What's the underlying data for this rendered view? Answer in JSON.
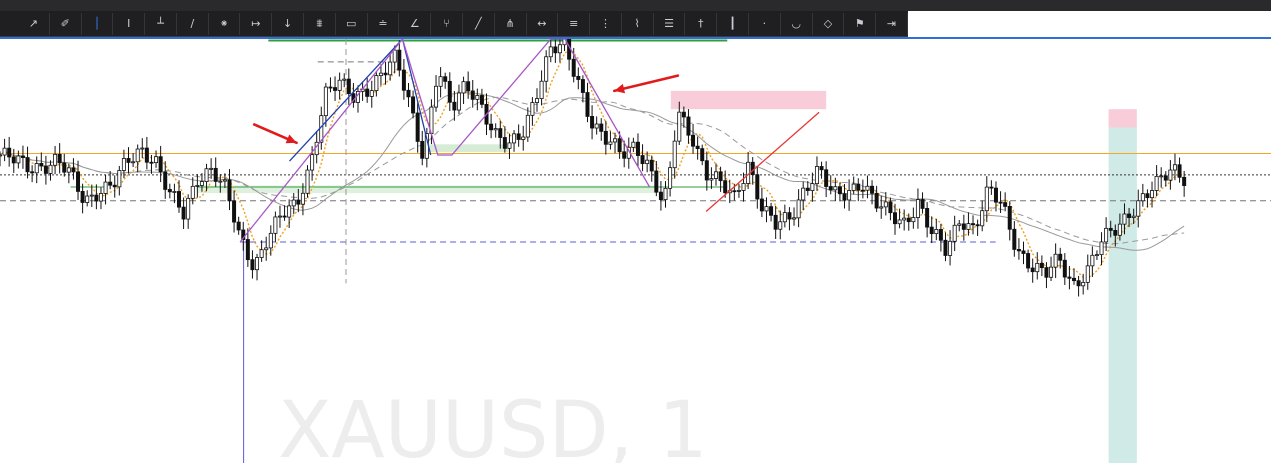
{
  "toolbar": {
    "buttons": [
      {
        "name": "cursor-tool-button",
        "icon": "cursor-icon",
        "glyph": "↗"
      },
      {
        "name": "pen-tool-button",
        "icon": "pen-icon",
        "glyph": "✐"
      },
      {
        "name": "vertical-line-tool-button",
        "icon": "vertical-line-icon",
        "glyph": "│",
        "active": true
      },
      {
        "name": "text-tool-button",
        "icon": "text-icon",
        "glyph": "I"
      },
      {
        "name": "horizontal-line-tool-button",
        "icon": "horizontal-line-icon",
        "glyph": "┴"
      },
      {
        "name": "trend-line-tool-button",
        "icon": "trend-line-icon",
        "glyph": "∕"
      },
      {
        "name": "brush-tool-button",
        "icon": "brush-icon",
        "glyph": "⁕"
      },
      {
        "name": "ray-tool-button",
        "icon": "ray-icon",
        "glyph": "↦"
      },
      {
        "name": "arrow-tool-button",
        "icon": "arrow-icon",
        "glyph": "↓"
      },
      {
        "name": "channel-tool-button",
        "icon": "channel-icon",
        "glyph": "⩩"
      },
      {
        "name": "rectangle-tool-button",
        "icon": "rectangle-icon",
        "glyph": "▭"
      },
      {
        "name": "ellipse-tool-button",
        "icon": "ellipse-icon",
        "glyph": "≐"
      },
      {
        "name": "angle-tool-button",
        "icon": "angle-icon",
        "glyph": "∠"
      },
      {
        "name": "fork-tool-button",
        "icon": "fork-icon",
        "glyph": "⑂"
      },
      {
        "name": "measure-tool-button",
        "icon": "measure-icon",
        "glyph": "╱"
      },
      {
        "name": "pitchfork-tool-button",
        "icon": "pitchfork-icon",
        "glyph": "⋔"
      },
      {
        "name": "range-tool-button",
        "icon": "range-icon",
        "glyph": "↔"
      },
      {
        "name": "fib-tool-button",
        "icon": "fibonacci-icon",
        "glyph": "≡"
      },
      {
        "name": "gann-tool-button",
        "icon": "gann-icon",
        "glyph": "⋮"
      },
      {
        "name": "pattern-tool-button",
        "icon": "pattern-icon",
        "glyph": "⌇"
      },
      {
        "name": "levels-tool-button",
        "icon": "levels-icon",
        "glyph": "☰"
      },
      {
        "name": "marker-tool-button",
        "icon": "marker-icon",
        "glyph": "†"
      },
      {
        "name": "candle-tool-button",
        "icon": "candle-icon",
        "glyph": "┃"
      },
      {
        "name": "dot-tool-button",
        "icon": "dot-icon",
        "glyph": "·"
      },
      {
        "name": "arc-tool-button",
        "icon": "arc-icon",
        "glyph": "◡"
      },
      {
        "name": "shape-tool-button",
        "icon": "shape-icon",
        "glyph": "◇"
      },
      {
        "name": "flag-tool-button",
        "icon": "flag-icon",
        "glyph": "⚑"
      },
      {
        "name": "projection-tool-button",
        "icon": "projection-icon",
        "glyph": "⇥"
      }
    ]
  },
  "colors": {
    "toolbar_bg": "#1f1f22",
    "accent_blue": "#2f6fd6",
    "candle": "#111111",
    "ma_fast": "#f0a020",
    "ma_slow": "#9a9a9a",
    "level_orange": "#f5a623",
    "level_green": "#2e9e3e",
    "zigzag_blue": "#1e40af",
    "zigzag_purple": "#a855c7",
    "zigzag_red": "#e53935",
    "arrow_red": "#e01b1b",
    "zone_pink": "#f7c4d2",
    "zone_green": "#cfe9cf",
    "zone_teal": "#c7e6e3",
    "watermark": "#ededed"
  },
  "chart_data": {
    "type": "candlestick",
    "title": "",
    "symbol_watermark": "XAUUSD, 1",
    "xlabel": "",
    "ylabel": "",
    "x_range": [
      0,
      180
    ],
    "ylim": [
      0,
      100
    ],
    "grid": false,
    "legend": "none",
    "close_anchors": [
      [
        0,
        62
      ],
      [
        4,
        58
      ],
      [
        8,
        60
      ],
      [
        10,
        55
      ],
      [
        12,
        47
      ],
      [
        14,
        51
      ],
      [
        16,
        52
      ],
      [
        18,
        59
      ],
      [
        20,
        64
      ],
      [
        22,
        61
      ],
      [
        24,
        49
      ],
      [
        26,
        42
      ],
      [
        28,
        55
      ],
      [
        30,
        58
      ],
      [
        32,
        50
      ],
      [
        34,
        34
      ],
      [
        36,
        26
      ],
      [
        38,
        36
      ],
      [
        40,
        42
      ],
      [
        42,
        45
      ],
      [
        44,
        60
      ],
      [
        46,
        82
      ],
      [
        48,
        85
      ],
      [
        50,
        81
      ],
      [
        53,
        86
      ],
      [
        56,
        93
      ],
      [
        58,
        79
      ],
      [
        60,
        62
      ],
      [
        62,
        90
      ],
      [
        64,
        76
      ],
      [
        66,
        86
      ],
      [
        68,
        80
      ],
      [
        70,
        68
      ],
      [
        72,
        64
      ],
      [
        74,
        70
      ],
      [
        76,
        83
      ],
      [
        78,
        96
      ],
      [
        80,
        97
      ],
      [
        82,
        86
      ],
      [
        84,
        72
      ],
      [
        86,
        66
      ],
      [
        88,
        62
      ],
      [
        90,
        66
      ],
      [
        92,
        58
      ],
      [
        94,
        44
      ],
      [
        95,
        58
      ],
      [
        96,
        76
      ],
      [
        98,
        69
      ],
      [
        100,
        56
      ],
      [
        102,
        52
      ],
      [
        104,
        48
      ],
      [
        106,
        60
      ],
      [
        108,
        44
      ],
      [
        110,
        38
      ],
      [
        112,
        42
      ],
      [
        114,
        52
      ],
      [
        116,
        57
      ],
      [
        118,
        48
      ],
      [
        120,
        50
      ],
      [
        122,
        54
      ],
      [
        124,
        46
      ],
      [
        126,
        42
      ],
      [
        128,
        40
      ],
      [
        130,
        47
      ],
      [
        132,
        36
      ],
      [
        134,
        30
      ],
      [
        136,
        42
      ],
      [
        138,
        38
      ],
      [
        140,
        50
      ],
      [
        142,
        45
      ],
      [
        144,
        32
      ],
      [
        146,
        26
      ],
      [
        148,
        22
      ],
      [
        150,
        28
      ],
      [
        152,
        20
      ],
      [
        154,
        24
      ],
      [
        156,
        33
      ],
      [
        158,
        38
      ],
      [
        160,
        44
      ],
      [
        162,
        48
      ],
      [
        164,
        52
      ],
      [
        166,
        58
      ],
      [
        168,
        55
      ]
    ],
    "moving_averages": [
      {
        "name": "MA fast",
        "style": "dotted",
        "color": "#f0a020",
        "period": 6
      },
      {
        "name": "MA slow",
        "style": "solid",
        "color": "#9a9a9a",
        "period": 30
      },
      {
        "name": "MA slow 2",
        "style": "dashed",
        "color": "#9a9a9a",
        "period": 40
      }
    ],
    "horizontal_levels": [
      {
        "name": "orange-level",
        "price": 62.5,
        "color": "#f5a623",
        "style": "solid",
        "x_from": 0,
        "x_to": 180
      },
      {
        "name": "black-dotted-level",
        "price": 55.5,
        "color": "#333333",
        "style": "dotted",
        "x_from": 0,
        "x_to": 180
      },
      {
        "name": "grey-dashed-level",
        "price": 47.0,
        "color": "#777777",
        "style": "dashed",
        "x_from": 0,
        "x_to": 180
      },
      {
        "name": "green-top-level",
        "price": 99.5,
        "color": "#2e9e3e",
        "style": "solid",
        "x_from": 38,
        "x_to": 103
      },
      {
        "name": "green-low-level",
        "price": 51.5,
        "color": "#2e9e3e",
        "style": "solid",
        "x_from": 28,
        "x_to": 103
      },
      {
        "name": "green-left-level",
        "price": 51.5,
        "color": "#2e9e3e",
        "style": "solid",
        "x_from": 10,
        "x_to": 15
      },
      {
        "name": "blue-dashed-level",
        "price": 33.5,
        "color": "#5b5bd6",
        "style": "dashed",
        "x_from": 34,
        "x_to": 141
      },
      {
        "name": "dashed-box-top",
        "price": 92.5,
        "color": "#777777",
        "style": "dashed",
        "x_from": 45,
        "x_to": 55
      }
    ],
    "vertical_lines": [
      {
        "name": "blue-vertical-line",
        "x": 34.5,
        "color": "#5b5bd6",
        "style": "solid",
        "y_from": 33.5,
        "y_to": 0
      },
      {
        "name": "grey-dashed-vertical",
        "x": 49,
        "color": "#999999",
        "style": "dashed",
        "y_from": 100,
        "y_to": 20
      }
    ],
    "zones": [
      {
        "name": "pink-supply-zone",
        "x_from": 95,
        "x_to": 117,
        "y_from": 77,
        "y_to": 83,
        "color": "#f7c4d2"
      },
      {
        "name": "green-demand-zone",
        "x_from": 60,
        "x_to": 72,
        "y_from": 63,
        "y_to": 65.5,
        "color": "#cfe9cf"
      },
      {
        "name": "green-low-zone",
        "x_from": 28,
        "x_to": 93,
        "y_from": 49.5,
        "y_to": 52,
        "color": "#d9efd8"
      },
      {
        "name": "teal-target-zone",
        "x_from": 157,
        "x_to": 161,
        "y_from": 0,
        "y_to": 71,
        "color": "#c7e6e3"
      },
      {
        "name": "pink-stop-zone",
        "x_from": 157,
        "x_to": 161,
        "y_from": 71,
        "y_to": 77,
        "color": "#f7c4d2"
      }
    ],
    "zigzag_lines": [
      {
        "name": "zigzag-blue",
        "color": "#1e40af",
        "points": [
          [
            41,
            60
          ],
          [
            57,
            100
          ],
          [
            61,
            62
          ]
        ]
      },
      {
        "name": "zigzag-purple",
        "color": "#a855c7",
        "points": [
          [
            34,
            33.5
          ],
          [
            57,
            100
          ],
          [
            62,
            62
          ],
          [
            64,
            62
          ],
          [
            78,
            100
          ],
          [
            80,
            100
          ],
          [
            92,
            51.5
          ]
        ]
      },
      {
        "name": "zigzag-red",
        "color": "#e53935",
        "points": [
          [
            100,
            43.5
          ],
          [
            116,
            76
          ]
        ]
      }
    ],
    "arrows": [
      {
        "name": "red-arrow-left",
        "from": [
          36,
          72
        ],
        "to": [
          42,
          66
        ],
        "color": "#e01b1b"
      },
      {
        "name": "red-arrow-right",
        "from": [
          96,
          88
        ],
        "to": [
          87,
          83
        ],
        "color": "#e01b1b"
      }
    ]
  }
}
